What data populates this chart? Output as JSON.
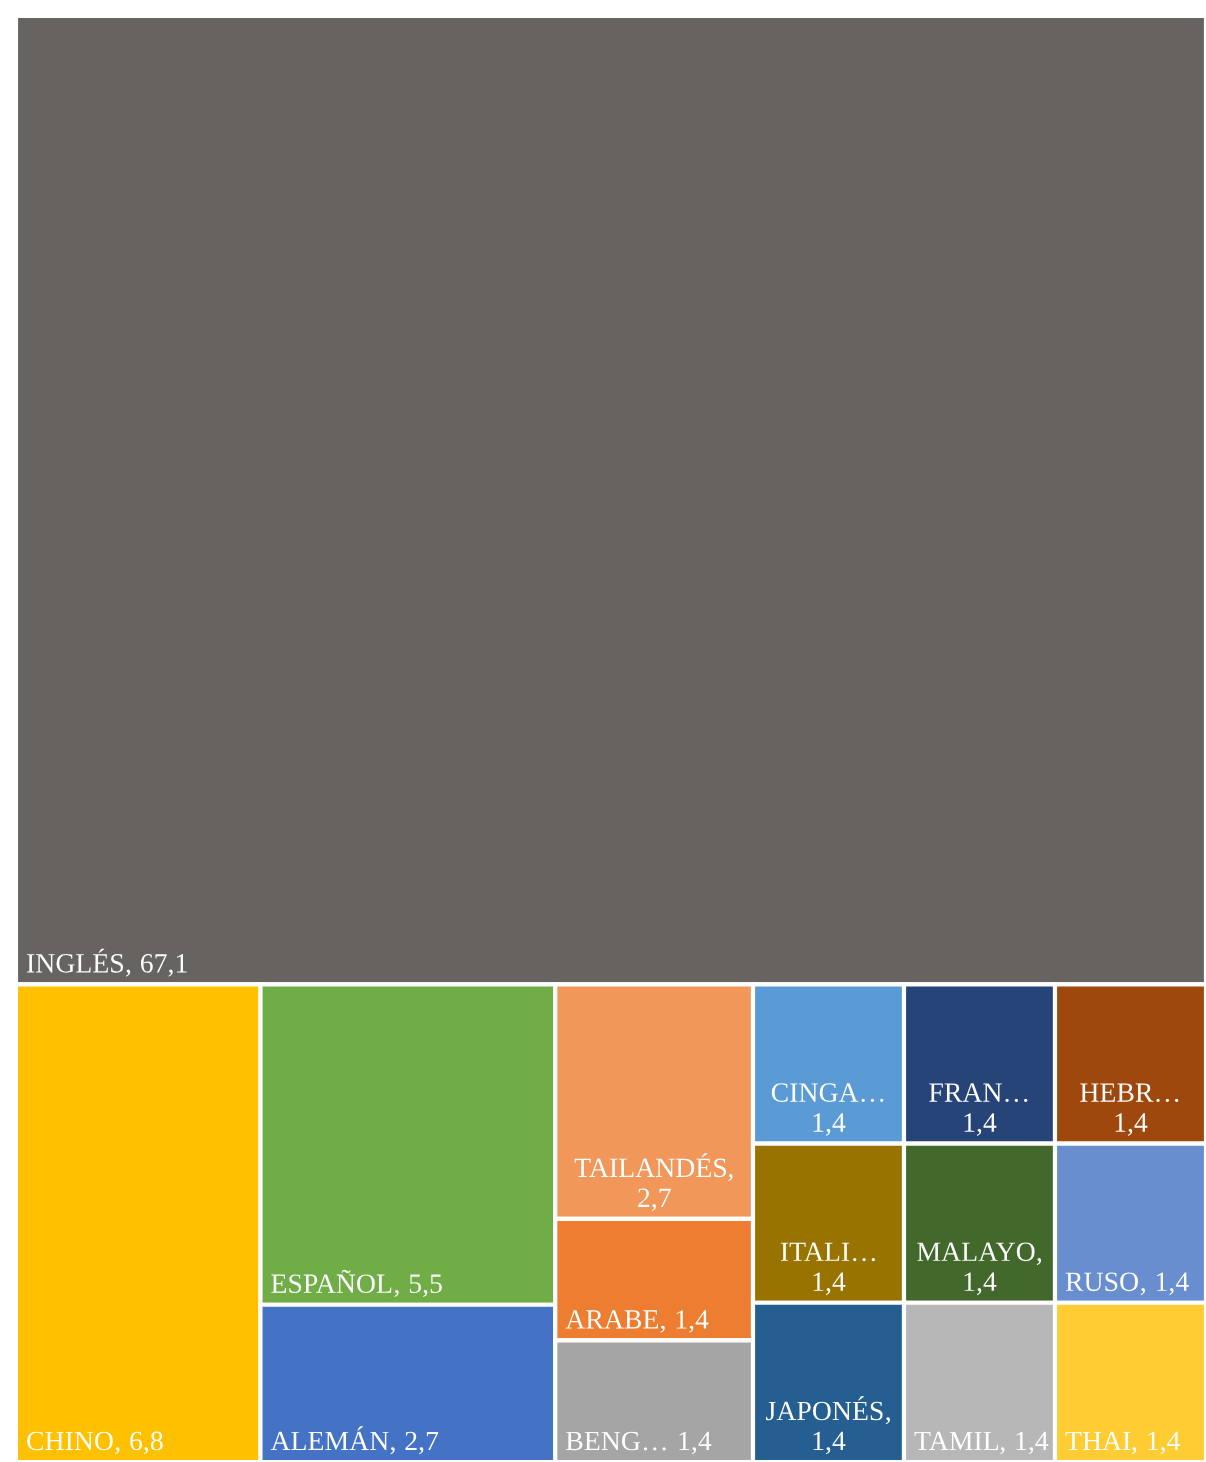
{
  "chart_data": {
    "type": "other",
    "categories": [
      "INGLÉS",
      "CHINO",
      "ESPAÑOL",
      "ALEMÁN",
      "TAILANDÉS",
      "ARABE",
      "BENG…",
      "CINGA…",
      "FRAN…",
      "HEBR…",
      "ITALI…",
      "JAPONÉS",
      "MALAYO",
      "RUSO",
      "TAMIL",
      "THAI"
    ],
    "values": [
      67.1,
      6.8,
      5.5,
      2.7,
      2.7,
      1.4,
      1.4,
      1.4,
      1.4,
      1.4,
      1.4,
      1.4,
      1.4,
      1.4,
      1.4,
      1.4
    ],
    "annotations": [
      ","
    ],
    "value_labels": [
      "67,1",
      "6,8",
      "5,5",
      "2,7",
      "2,7",
      "1,4",
      "1,4",
      "1,4",
      "1,4",
      "1,4",
      "1,4",
      "1,4",
      "1,4",
      "1,4",
      "1,4",
      "1,4"
    ],
    "colors": [
      "#676360",
      "#ffc000",
      "#70ad47",
      "#4472c4",
      "#f1975a",
      "#ed7d31",
      "#a5a5a5",
      "#5b9bd5",
      "#264478",
      "#9e480e",
      "#997300",
      "#255e91",
      "#43682b",
      "#698ed0",
      "#b7b7b7",
      "#ffcd33"
    ]
  }
}
